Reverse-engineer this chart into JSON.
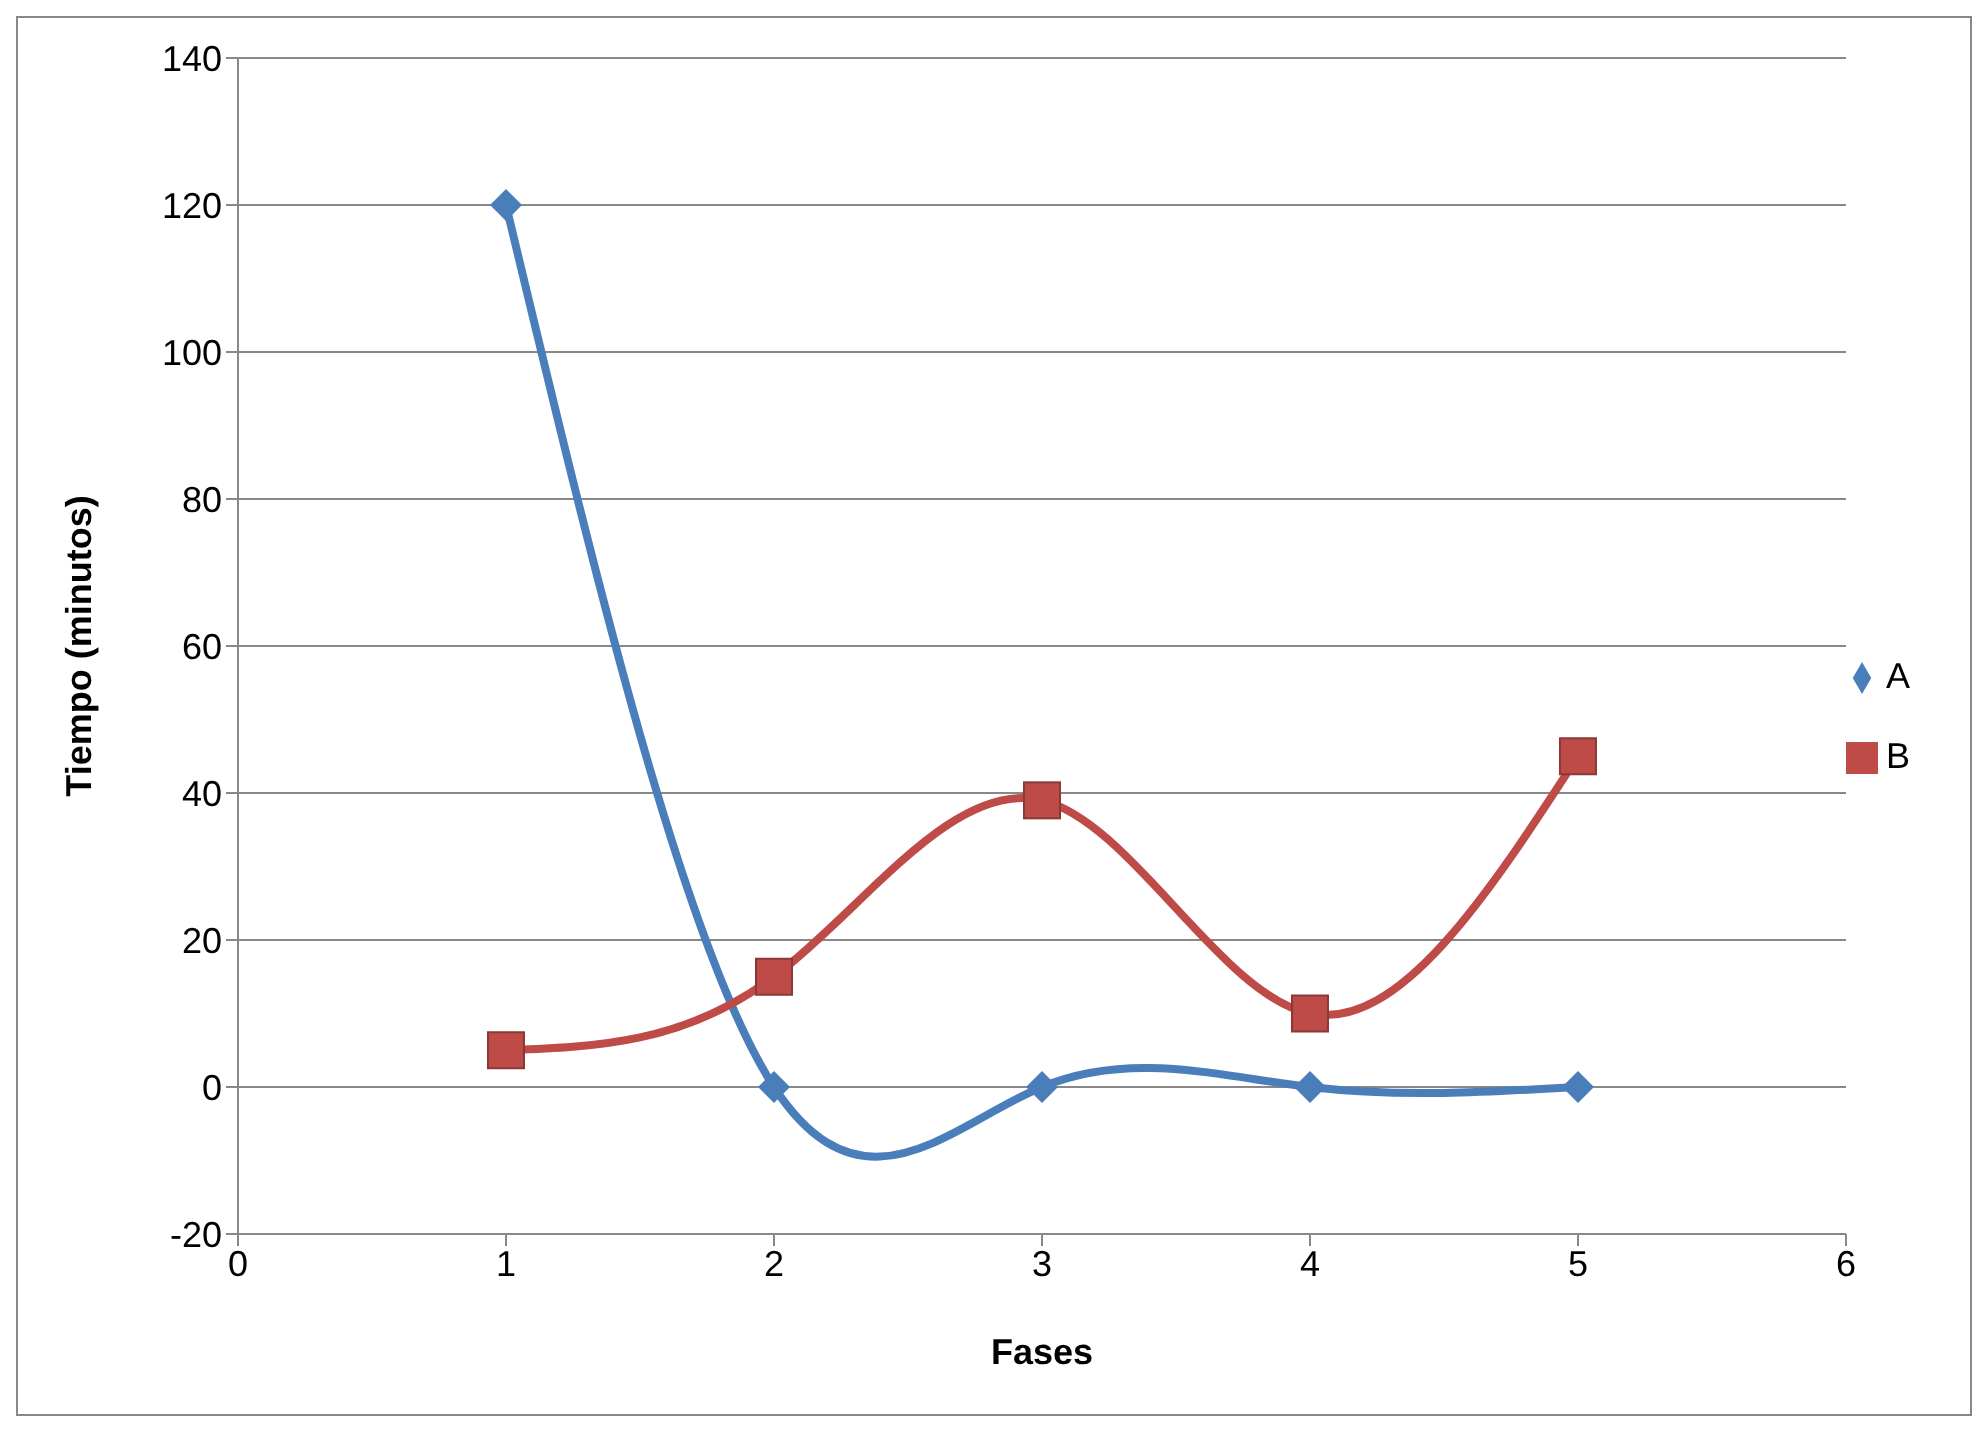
{
  "chart_data": {
    "type": "line",
    "xlabel": "Fases",
    "ylabel": "Tiempo (minutos)",
    "x": [
      1,
      2,
      3,
      4,
      5
    ],
    "series": [
      {
        "name": "A",
        "color": "#4a7ebb",
        "values": [
          120,
          0,
          0,
          0,
          0
        ],
        "marker": "diamond"
      },
      {
        "name": "B",
        "color": "#be4b48",
        "values": [
          5,
          15,
          39,
          10,
          45
        ],
        "marker": "square"
      }
    ],
    "xlim": [
      0,
      6
    ],
    "xticks": [
      0,
      1,
      2,
      3,
      4,
      5,
      6
    ],
    "ylim": [
      -20,
      140
    ],
    "yticks": [
      -20,
      0,
      20,
      40,
      60,
      80,
      100,
      120,
      140
    ],
    "grid": "y",
    "legend": "right",
    "line_style": "solid"
  }
}
